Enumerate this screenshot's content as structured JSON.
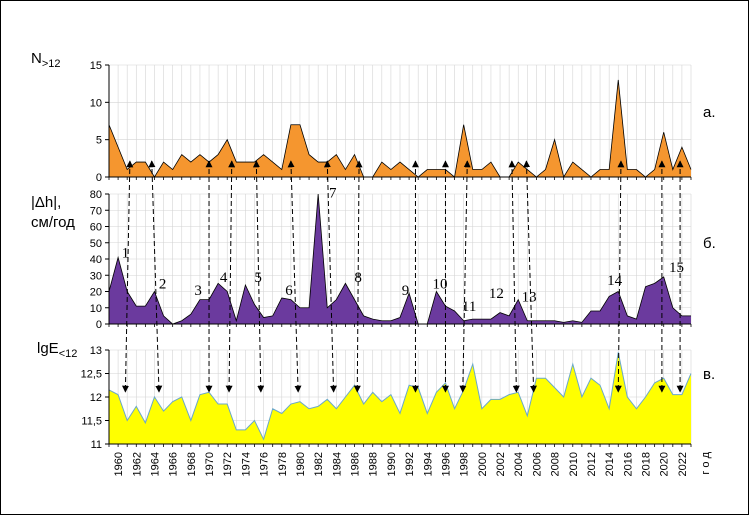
{
  "chart_data": [
    {
      "type": "area",
      "panel": "a",
      "panel_letter": "а.",
      "ylabel": "N",
      "ylabel_sub": ">12",
      "ylim": [
        0,
        15
      ],
      "yticks": [
        0,
        5,
        10,
        15
      ],
      "fill_color": "#F5962F",
      "x": [
        1959,
        1960,
        1961,
        1962,
        1963,
        1964,
        1965,
        1966,
        1967,
        1968,
        1969,
        1970,
        1971,
        1972,
        1973,
        1974,
        1975,
        1976,
        1977,
        1978,
        1979,
        1980,
        1981,
        1982,
        1983,
        1984,
        1985,
        1986,
        1987,
        1988,
        1989,
        1990,
        1991,
        1992,
        1993,
        1994,
        1995,
        1996,
        1997,
        1998,
        1999,
        2000,
        2001,
        2002,
        2003,
        2004,
        2005,
        2006,
        2007,
        2008,
        2009,
        2010,
        2011,
        2012,
        2013,
        2014,
        2015,
        2016,
        2017,
        2018,
        2019,
        2020,
        2021,
        2022,
        2023
      ],
      "values": [
        7,
        4,
        1,
        2,
        2,
        0,
        2,
        1,
        3,
        2,
        3,
        2,
        3,
        5,
        2,
        2,
        2,
        3,
        2,
        1,
        7,
        7,
        3,
        2,
        2,
        3,
        1,
        3,
        0,
        0,
        2,
        1,
        2,
        1,
        0,
        1,
        1,
        1,
        0,
        7,
        1,
        1,
        2,
        0,
        0,
        2,
        1,
        0,
        1,
        5,
        0,
        2,
        1,
        0,
        1,
        1,
        13,
        1,
        1,
        0,
        1,
        6,
        1,
        4,
        1
      ]
    },
    {
      "type": "area",
      "panel": "b",
      "panel_letter": "б.",
      "ylabel_line1": "|Δh|,",
      "ylabel_line2": "см/год",
      "ylim": [
        0,
        80
      ],
      "yticks": [
        0,
        10,
        20,
        30,
        40,
        50,
        60,
        70,
        80
      ],
      "fill_color": "#6B3A9E",
      "x": [
        1959,
        1960,
        1961,
        1962,
        1963,
        1964,
        1965,
        1966,
        1967,
        1968,
        1969,
        1970,
        1971,
        1972,
        1973,
        1974,
        1975,
        1976,
        1977,
        1978,
        1979,
        1980,
        1981,
        1982,
        1983,
        1984,
        1985,
        1986,
        1987,
        1988,
        1989,
        1990,
        1991,
        1992,
        1993,
        1994,
        1995,
        1996,
        1997,
        1998,
        1999,
        2000,
        2001,
        2002,
        2003,
        2004,
        2005,
        2006,
        2007,
        2008,
        2009,
        2010,
        2011,
        2012,
        2013,
        2014,
        2015,
        2016,
        2017,
        2018,
        2019,
        2020,
        2021,
        2022,
        2023
      ],
      "values": [
        20,
        41,
        20,
        11,
        11,
        20,
        5,
        0,
        2,
        6,
        15,
        15,
        25,
        20,
        2,
        24,
        12,
        4,
        5,
        16,
        15,
        10,
        10,
        81,
        10,
        15,
        25,
        15,
        5,
        3,
        2,
        2,
        4,
        19,
        0,
        0,
        20,
        11,
        8,
        2,
        3,
        3,
        3,
        7,
        5,
        15,
        2,
        2,
        2,
        2,
        1,
        2,
        1,
        8,
        8,
        17,
        20,
        5,
        3,
        23,
        25,
        29,
        10,
        5,
        5
      ],
      "annotations": [
        {
          "label": "1",
          "x": 1960.8,
          "y": 41
        },
        {
          "label": "2",
          "x": 1964.9,
          "y": 22
        },
        {
          "label": "3",
          "x": 1968.8,
          "y": 18
        },
        {
          "label": "4",
          "x": 1971.6,
          "y": 26
        },
        {
          "label": "5",
          "x": 1975.4,
          "y": 26
        },
        {
          "label": "6",
          "x": 1978.8,
          "y": 18
        },
        {
          "label": "7",
          "x": 1983.6,
          "y": 78
        },
        {
          "label": "8",
          "x": 1986.4,
          "y": 26
        },
        {
          "label": "9",
          "x": 1991.6,
          "y": 18
        },
        {
          "label": "10",
          "x": 1995.4,
          "y": 22
        },
        {
          "label": "11",
          "x": 1998.6,
          "y": 8
        },
        {
          "label": "12",
          "x": 2001.6,
          "y": 16
        },
        {
          "label": "13",
          "x": 2005.2,
          "y": 14
        },
        {
          "label": "14",
          "x": 2014.6,
          "y": 24
        },
        {
          "label": "15",
          "x": 2021.4,
          "y": 32
        }
      ]
    },
    {
      "type": "area",
      "panel": "c",
      "panel_letter": "в.",
      "ylabel": "lgE",
      "ylabel_sub": "<12",
      "ylim": [
        11,
        13
      ],
      "yticks": [
        11,
        11.5,
        12,
        12.5,
        13
      ],
      "ytick_labels": [
        "11",
        "11,5",
        "12",
        "12,5",
        "13"
      ],
      "fill_color": "#FFFF00",
      "x": [
        1959,
        1960,
        1961,
        1962,
        1963,
        1964,
        1965,
        1966,
        1967,
        1968,
        1969,
        1970,
        1971,
        1972,
        1973,
        1974,
        1975,
        1976,
        1977,
        1978,
        1979,
        1980,
        1981,
        1982,
        1983,
        1984,
        1985,
        1986,
        1987,
        1988,
        1989,
        1990,
        1991,
        1992,
        1993,
        1994,
        1995,
        1996,
        1997,
        1998,
        1999,
        2000,
        2001,
        2002,
        2003,
        2004,
        2005,
        2006,
        2007,
        2008,
        2009,
        2010,
        2011,
        2012,
        2013,
        2014,
        2015,
        2016,
        2017,
        2018,
        2019,
        2020,
        2021,
        2022,
        2023
      ],
      "values": [
        12.15,
        12.05,
        11.5,
        11.8,
        11.45,
        12.0,
        11.7,
        11.9,
        12.0,
        11.5,
        12.05,
        12.1,
        11.85,
        11.85,
        11.3,
        11.3,
        11.5,
        11.1,
        11.75,
        11.65,
        11.85,
        11.9,
        11.75,
        11.8,
        11.95,
        11.75,
        12.0,
        12.25,
        11.85,
        12.1,
        11.9,
        12.05,
        11.65,
        12.25,
        12.2,
        11.65,
        12.1,
        12.3,
        11.75,
        12.15,
        12.7,
        11.75,
        11.95,
        11.95,
        12.05,
        12.1,
        11.6,
        12.4,
        12.4,
        12.2,
        12.0,
        12.7,
        12.0,
        12.4,
        12.25,
        11.75,
        12.95,
        12.0,
        11.75,
        12.0,
        12.3,
        12.4,
        12.05,
        12.05,
        12.5
      ]
    }
  ],
  "x_axis": {
    "tick_years": [
      1960,
      1962,
      1964,
      1966,
      1968,
      1970,
      1972,
      1974,
      1976,
      1978,
      1980,
      1982,
      1984,
      1986,
      1988,
      1990,
      1992,
      1994,
      1996,
      1998,
      2000,
      2002,
      2004,
      2006,
      2008,
      2010,
      2012,
      2014,
      2016,
      2018,
      2020,
      2022
    ],
    "tick_labels": [
      "1960",
      "1962",
      "1964",
      "1966",
      "1968",
      "1970",
      "1972",
      "1974",
      "1976",
      "1978",
      "1980",
      "1982",
      "1984",
      "1986",
      "1988",
      "1990",
      "1992",
      "1994",
      "1996",
      "1998",
      "2000",
      "2002",
      "2004",
      "2006",
      "2008",
      "2010",
      "2012",
      "2014",
      "2016",
      "2018",
      "2020",
      "2022"
    ],
    "unit_label": "г о д"
  },
  "arrows": [
    {
      "from_year": 1961.3,
      "to_year": 1960.8
    },
    {
      "from_year": 1963.7,
      "to_year": 1964.5
    },
    {
      "from_year": 1970.0,
      "to_year": 1970.0
    },
    {
      "from_year": 1972.5,
      "to_year": 1972.2
    },
    {
      "from_year": 1975.2,
      "to_year": 1975.7
    },
    {
      "from_year": 1979.0,
      "to_year": 1979.8
    },
    {
      "from_year": 1983.0,
      "to_year": 1983.7
    },
    {
      "from_year": 1986.5,
      "to_year": 1986.3
    },
    {
      "from_year": 1992.7,
      "to_year": 1992.7
    },
    {
      "from_year": 1996.0,
      "to_year": 1996.0
    },
    {
      "from_year": 1998.4,
      "to_year": 1997.9
    },
    {
      "from_year": 2003.3,
      "to_year": 2003.8
    },
    {
      "from_year": 2004.9,
      "to_year": 2005.7
    },
    {
      "from_year": 2015.3,
      "to_year": 2015.0
    },
    {
      "from_year": 2019.8,
      "to_year": 2019.8
    },
    {
      "from_year": 2021.8,
      "to_year": 2021.8
    }
  ]
}
